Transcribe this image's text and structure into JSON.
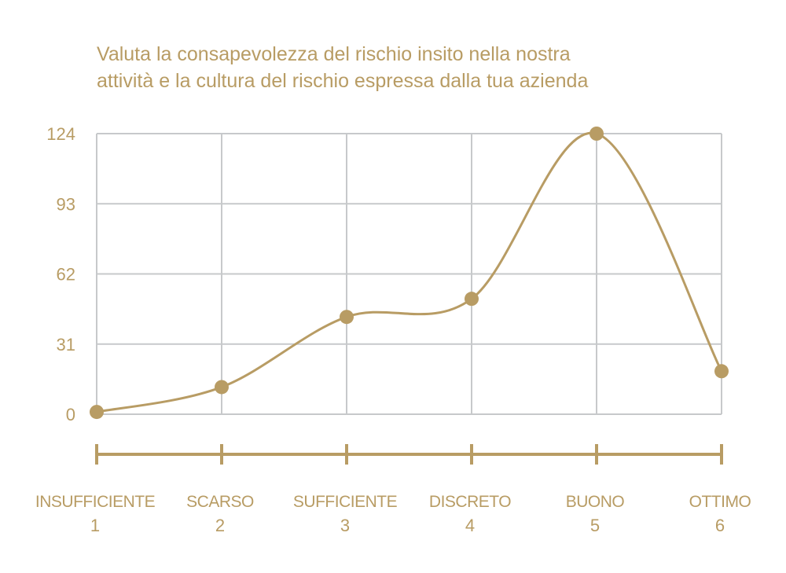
{
  "colors": {
    "accent": "#B89C64",
    "grid": "#C7C9CB",
    "background": "#FFFFFF"
  },
  "chart_data": {
    "type": "line",
    "title": "Valuta la consapevolezza del rischio insito nella nostra attività e la cultura del rischio espressa dalla tua azienda",
    "title_lines": [
      "Valuta la consapevolezza del rischio insito nella nostra",
      "attività e la cultura del rischio espressa dalla tua azienda"
    ],
    "categories": [
      "INSUFFICIENTE",
      "SCARSO",
      "SUFFICIENTE",
      "DISCRETO",
      "BUONO",
      "OTTIMO"
    ],
    "category_numbers": [
      "1",
      "2",
      "3",
      "4",
      "5",
      "6"
    ],
    "values": [
      1,
      12,
      43,
      51,
      124,
      19
    ],
    "yticks": [
      "0",
      "31",
      "62",
      "93",
      "124"
    ],
    "ylim": [
      0,
      124
    ],
    "smooth": true,
    "grid": true,
    "legend": "none"
  }
}
